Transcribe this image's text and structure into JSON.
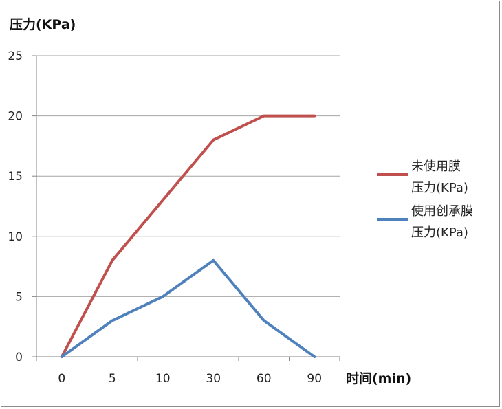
{
  "chart_data": {
    "type": "line",
    "ylabel": "压力(KPa)",
    "xlabel": "时间(min)",
    "categories": [
      "0",
      "5",
      "10",
      "30",
      "60",
      "90"
    ],
    "ylim": [
      0,
      25
    ],
    "yticks": [
      0,
      5,
      10,
      15,
      20,
      25
    ],
    "grid": true,
    "legend_position": "right",
    "series": [
      {
        "name": "未使用膜压力(KPa)",
        "name_lines": [
          "未使用膜",
          "压力(KPa)"
        ],
        "color": "#c0504d",
        "values": [
          0,
          8,
          13,
          18,
          20,
          20
        ]
      },
      {
        "name": "使用创承膜压力(KPa)",
        "name_lines": [
          "使用创承膜",
          "压力(KPa)"
        ],
        "color": "#4f81bd",
        "values": [
          0,
          3,
          5,
          8,
          3,
          0
        ]
      }
    ]
  }
}
